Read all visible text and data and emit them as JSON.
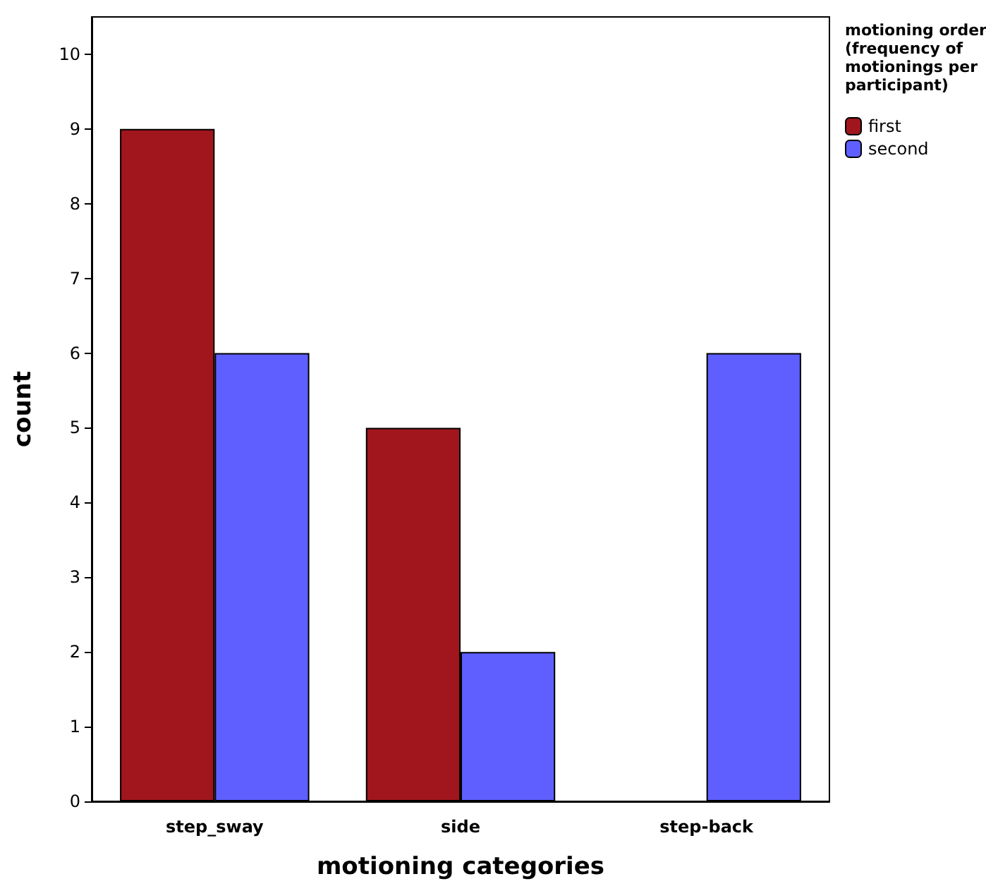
{
  "chart_data": {
    "type": "bar",
    "xlabel": "motioning categories",
    "ylabel": "count",
    "legend_title": "motioning order (frequency of motionings per participant)",
    "categories": [
      "step_sway",
      "side",
      "step-back"
    ],
    "series": [
      {
        "name": "first",
        "color": "#a0161c",
        "values": [
          9,
          5,
          null
        ]
      },
      {
        "name": "second",
        "color": "#5f5fff",
        "values": [
          6,
          2,
          6
        ]
      }
    ],
    "ylim": [
      0,
      10.5
    ],
    "yticks": [
      0,
      1,
      2,
      3,
      4,
      5,
      6,
      7,
      8,
      9,
      10
    ],
    "grid": false,
    "legend": "top right"
  }
}
